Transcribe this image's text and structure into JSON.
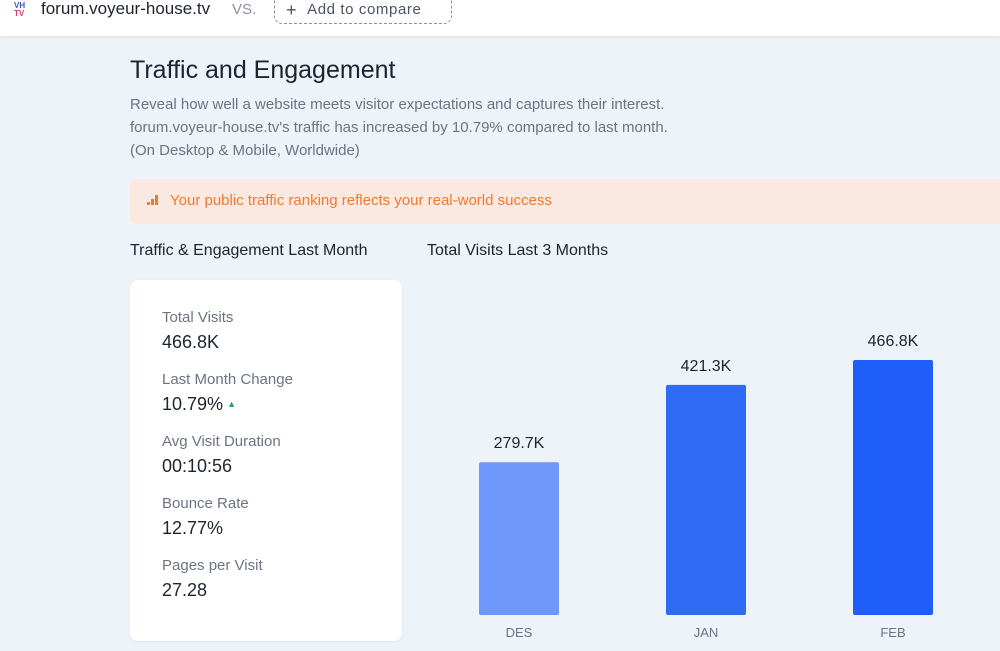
{
  "topbar": {
    "site_name": "forum.voyeur-house.tv",
    "vs_label": "VS.",
    "add_compare_label": "Add to compare",
    "add_compare_icon": "plus-icon"
  },
  "header": {
    "title": "Traffic and Engagement",
    "description_lines": [
      "Reveal how well a website meets visitor expectations and captures their interest.",
      "forum.voyeur-house.tv's traffic has increased by 10.79% compared to last month.",
      "(On Desktop & Mobile, Worldwide)"
    ]
  },
  "banner": {
    "icon": "bar-chart-icon",
    "text": "Your public traffic ranking reflects your real-world success",
    "color": "#f07a2e",
    "background": "#fbe9e1"
  },
  "stats": {
    "section_title": "Traffic & Engagement Last Month",
    "items": [
      {
        "label": "Total Visits",
        "value": "466.8K"
      },
      {
        "label": "Last Month Change",
        "value": "10.79%"
      },
      {
        "label": "Avg Visit Duration",
        "value": "00:10:56"
      },
      {
        "label": "Bounce Rate",
        "value": "12.77%"
      },
      {
        "label": "Pages per Visit",
        "value": "27.28"
      }
    ],
    "change_direction": "up",
    "up_color": "#1aa36f"
  },
  "chart_section": {
    "title": "Total Visits Last 3 Months"
  },
  "chart_data": {
    "type": "bar",
    "categories": [
      "DES",
      "JAN",
      "FEB"
    ],
    "values": [
      279.7,
      421.3,
      466.8
    ],
    "data_labels": [
      "279.7K",
      "421.3K",
      "466.8K"
    ],
    "colors": [
      "#6f97fb",
      "#2f6bf5",
      "#1f5ef8"
    ],
    "title": "",
    "xlabel": "",
    "ylabel": "",
    "ylim": [
      0,
      500
    ],
    "grid": false
  }
}
